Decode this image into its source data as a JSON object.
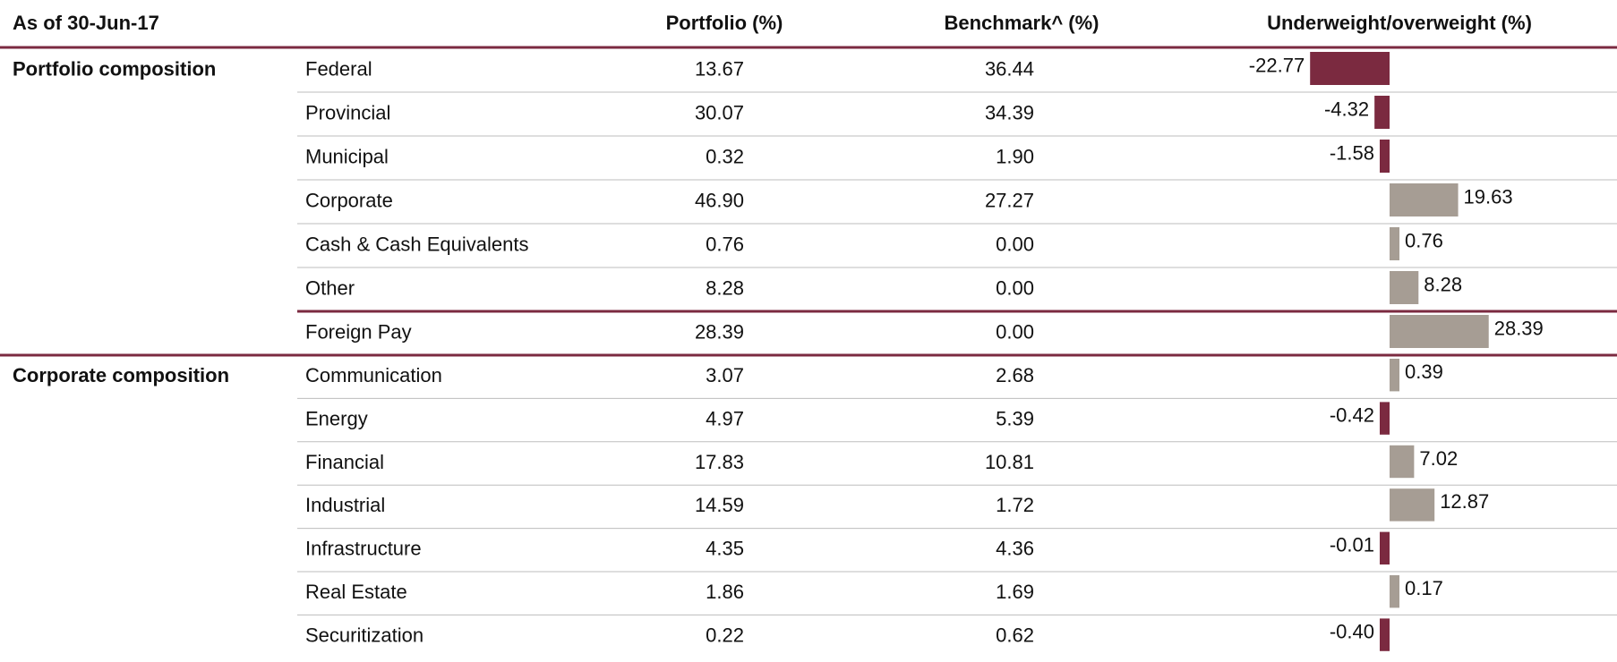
{
  "header": {
    "date": "As of 30-Jun-17",
    "portfolio": "Portfolio (%)",
    "benchmark": "Benchmark^ (%)",
    "active": "Underweight/overweight (%)"
  },
  "colors": {
    "negative": "#7b2a40",
    "positive": "#a69d94",
    "rule": "#7b2a40"
  },
  "sections": [
    {
      "title": "Portfolio composition",
      "rows": [
        {
          "name": "Federal",
          "portfolio": "13.67",
          "benchmark": "36.44",
          "active": -22.77,
          "active_label": "-22.77"
        },
        {
          "name": "Provincial",
          "portfolio": "30.07",
          "benchmark": "34.39",
          "active": -4.32,
          "active_label": "-4.32"
        },
        {
          "name": "Municipal",
          "portfolio": "0.32",
          "benchmark": "1.90",
          "active": -1.58,
          "active_label": "-1.58"
        },
        {
          "name": "Corporate",
          "portfolio": "46.90",
          "benchmark": "27.27",
          "active": 19.63,
          "active_label": "19.63"
        },
        {
          "name": "Cash & Cash Equivalents",
          "portfolio": "0.76",
          "benchmark": "0.00",
          "active": 0.76,
          "active_label": "0.76"
        },
        {
          "name": "Other",
          "portfolio": "8.28",
          "benchmark": "0.00",
          "active": 8.28,
          "active_label": "8.28"
        },
        {
          "name": "Foreign Pay",
          "portfolio": "28.39",
          "benchmark": "0.00",
          "active": 28.39,
          "active_label": "28.39"
        }
      ]
    },
    {
      "title": "Corporate composition",
      "rows": [
        {
          "name": "Communication",
          "portfolio": "3.07",
          "benchmark": "2.68",
          "active": 0.39,
          "active_label": "0.39"
        },
        {
          "name": "Energy",
          "portfolio": "4.97",
          "benchmark": "5.39",
          "active": -0.42,
          "active_label": "-0.42"
        },
        {
          "name": "Financial",
          "portfolio": "17.83",
          "benchmark": "10.81",
          "active": 7.02,
          "active_label": "7.02"
        },
        {
          "name": "Industrial",
          "portfolio": "14.59",
          "benchmark": "1.72",
          "active": 12.87,
          "active_label": "12.87"
        },
        {
          "name": "Infrastructure",
          "portfolio": "4.35",
          "benchmark": "4.36",
          "active": -0.01,
          "active_label": "-0.01"
        },
        {
          "name": "Real Estate",
          "portfolio": "1.86",
          "benchmark": "1.69",
          "active": 0.17,
          "active_label": "0.17"
        },
        {
          "name": "Securitization",
          "portfolio": "0.22",
          "benchmark": "0.62",
          "active": -0.4,
          "active_label": "-0.40"
        }
      ]
    }
  ]
}
